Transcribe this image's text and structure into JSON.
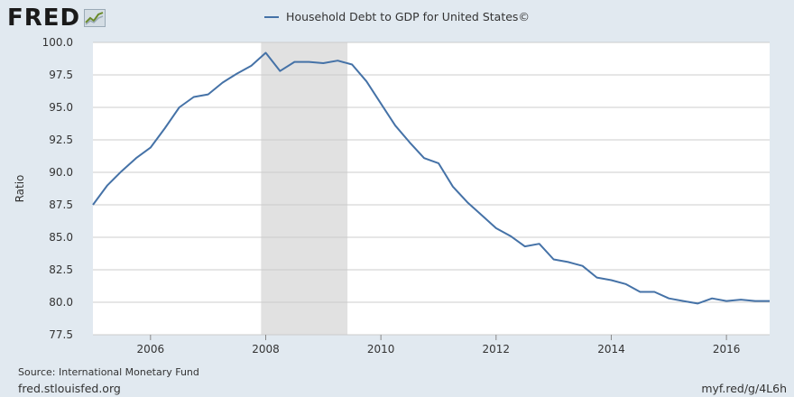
{
  "header": {
    "logo_text": "FRED",
    "logo_icon": "trend-graph-icon"
  },
  "footer": {
    "source": "Source: International Monetary Fund",
    "site": "fred.stlouisfed.org",
    "short_url": "myf.red/g/4L6h"
  },
  "colors": {
    "line": "#4572a7",
    "recession": "#e1e1e1",
    "background": "#e1e9f0"
  },
  "chart_data": {
    "type": "line",
    "title": "",
    "xlabel": "",
    "ylabel": "Ratio",
    "ylim": [
      77.5,
      100.0
    ],
    "xlim": [
      2005.0,
      2016.75
    ],
    "grid": true,
    "legend_placement": "top-center",
    "yticks": [
      "77.5",
      "80.0",
      "82.5",
      "85.0",
      "87.5",
      "90.0",
      "92.5",
      "95.0",
      "97.5",
      "100.0"
    ],
    "xticks": [
      {
        "value": 2006,
        "label": "2006"
      },
      {
        "value": 2008,
        "label": "2008"
      },
      {
        "value": 2010,
        "label": "2010"
      },
      {
        "value": 2012,
        "label": "2012"
      },
      {
        "value": 2014,
        "label": "2014"
      },
      {
        "value": 2016,
        "label": "2016"
      }
    ],
    "recessions": [
      {
        "start": 2007.92,
        "end": 2009.42
      }
    ],
    "series": [
      {
        "name": "Household Debt to GDP for United States©",
        "x": [
          2005.0,
          2005.25,
          2005.5,
          2005.75,
          2006.0,
          2006.25,
          2006.5,
          2006.75,
          2007.0,
          2007.25,
          2007.5,
          2007.75,
          2008.0,
          2008.25,
          2008.5,
          2008.75,
          2009.0,
          2009.25,
          2009.5,
          2009.75,
          2010.0,
          2010.25,
          2010.5,
          2010.75,
          2011.0,
          2011.25,
          2011.5,
          2011.75,
          2012.0,
          2012.25,
          2012.5,
          2012.75,
          2013.0,
          2013.25,
          2013.5,
          2013.75,
          2014.0,
          2014.25,
          2014.5,
          2014.75,
          2015.0,
          2015.25,
          2015.5,
          2015.75,
          2016.0,
          2016.25,
          2016.5,
          2016.75
        ],
        "values": [
          87.5,
          89.0,
          90.1,
          91.1,
          91.9,
          93.4,
          95.0,
          95.8,
          96.0,
          96.9,
          97.6,
          98.2,
          99.2,
          97.8,
          98.5,
          98.5,
          98.4,
          98.6,
          98.3,
          97.0,
          95.3,
          93.6,
          92.3,
          91.1,
          90.7,
          88.9,
          87.7,
          86.7,
          85.7,
          85.1,
          84.3,
          84.5,
          83.3,
          83.1,
          82.8,
          81.9,
          81.7,
          81.4,
          80.8,
          80.8,
          80.3,
          80.1,
          79.9,
          80.3,
          80.1,
          80.2,
          80.1,
          80.1
        ]
      }
    ]
  }
}
